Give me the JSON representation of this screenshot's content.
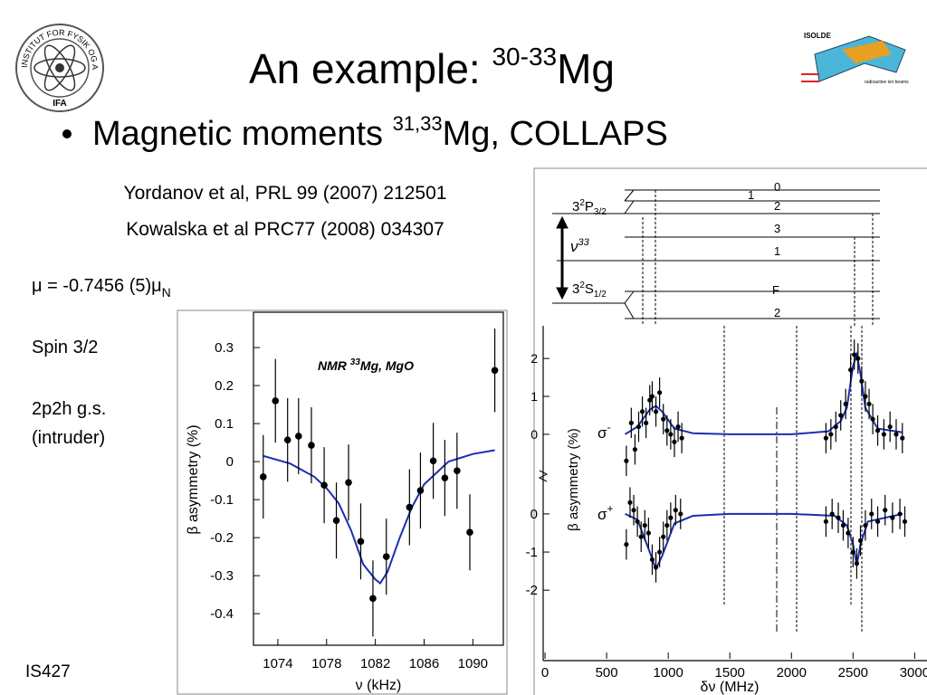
{
  "slide": {
    "title": "An example: ",
    "title_sup": "30-33",
    "title_tail": "Mg",
    "bullet": "Magnetic moments ",
    "bullet_sup": "31,33",
    "bullet_tail": "Mg, COLLAPS",
    "refs": [
      "Yordanov et al, PRL 99 (2007) 212501",
      "Kowalska et al PRC77 (2008) 034307"
    ],
    "mu_text": "μ  = -0.7456 (5)μ",
    "mu_sub": "N",
    "notes": [
      "Spin 3/2",
      "2p2h g.s.",
      "(intruder)"
    ],
    "footer": "IS427",
    "logo_ring": "INSTITUT FOR FYSIK OG ASTRONOMI",
    "logo_name": "IFA",
    "isolde": "ISOLDE",
    "isolde_beams": "radioactive ion beams",
    "levels": {
      "upper": "3",
      "upper_sup": "2",
      "upper_tail": "P",
      "upper_sub": "3/2",
      "lower": "3",
      "lower_sup": "2",
      "lower_tail": "S",
      "lower_sub": "1/2",
      "nu": "ν",
      "nu_sup": "33",
      "labels": [
        "0",
        "1",
        "2",
        "3",
        "1",
        "F",
        "2"
      ]
    }
  },
  "chart_data": [
    {
      "type": "scatter",
      "title": "NMR ",
      "title_sup": "33",
      "title_tail": "Mg, MgO",
      "xlabel": "ν (kHz)",
      "ylabel": "β asymmetry (%)",
      "xlim": [
        1072,
        1092.5
      ],
      "ylim": [
        -0.483,
        0.393
      ],
      "xticks": [
        1074,
        1078,
        1082,
        1086,
        1090
      ],
      "yticks": [
        0.3,
        0.2,
        0.1,
        0,
        -0.1,
        -0.2,
        -0.3,
        -0.4
      ],
      "color": "#000000",
      "x": [
        1072.8,
        1073.8,
        1074.8,
        1075.7,
        1076.75,
        1077.8,
        1078.8,
        1079.8,
        1080.8,
        1081.8,
        1082.9,
        1084.8,
        1085.7,
        1086.75,
        1087.7,
        1088.7,
        1089.75,
        1091.8
      ],
      "values": [
        -0.04,
        0.16,
        0.057,
        0.067,
        0.043,
        -0.062,
        -0.155,
        -0.055,
        -0.21,
        -0.36,
        -0.25,
        -0.12,
        -0.076,
        0.002,
        -0.043,
        -0.024,
        -0.186,
        0.24
      ],
      "errors": [
        0.11,
        0.11,
        0.11,
        0.1,
        0.1,
        0.1,
        0.1,
        0.1,
        0.1,
        0.1,
        0.1,
        0.1,
        0.1,
        0.1,
        0.1,
        0.1,
        0.1,
        0.11
      ],
      "fit": {
        "color": "#1a2fb0",
        "x": [
          1072.8,
          1075,
          1077,
          1078,
          1079,
          1080,
          1081,
          1082,
          1082.4,
          1083,
          1084,
          1085,
          1086,
          1088,
          1090,
          1091.8
        ],
        "values": [
          0.015,
          -0.005,
          -0.04,
          -0.07,
          -0.11,
          -0.18,
          -0.27,
          -0.31,
          -0.32,
          -0.29,
          -0.2,
          -0.12,
          -0.06,
          0.0,
          0.02,
          0.03
        ]
      }
    },
    {
      "type": "scatter",
      "panel_label": "σ",
      "panel_label_sup": "-",
      "ylabel": "β asymmetry (%)",
      "xlim": [
        -15,
        3100
      ],
      "ylim": [
        -1.1,
        2.6
      ],
      "yticks": [
        2,
        1,
        0
      ],
      "color": "#000000",
      "x": [
        660,
        700,
        730,
        760,
        790,
        820,
        850,
        870,
        900,
        930,
        960,
        990,
        1020,
        1050,
        1080,
        1110,
        2280,
        2320,
        2360,
        2400,
        2440,
        2480,
        2510,
        2540,
        2570,
        2600,
        2630,
        2660,
        2700,
        2750,
        2800,
        2850,
        2900
      ],
      "values": [
        -0.7,
        0.3,
        -0.4,
        0.2,
        0.6,
        0.3,
        0.9,
        1.0,
        0.6,
        1.1,
        0.4,
        0.1,
        0.0,
        -0.2,
        0.2,
        -0.1,
        -0.1,
        0.0,
        0.2,
        0.5,
        0.8,
        1.7,
        2.1,
        2.0,
        1.4,
        1.0,
        0.8,
        0.4,
        0.1,
        0.0,
        0.2,
        0.0,
        -0.1
      ],
      "errors": [
        0.4,
        0.4,
        0.4,
        0.4,
        0.4,
        0.4,
        0.4,
        0.4,
        0.4,
        0.4,
        0.4,
        0.4,
        0.4,
        0.4,
        0.4,
        0.4,
        0.4,
        0.4,
        0.4,
        0.4,
        0.4,
        0.4,
        0.4,
        0.4,
        0.4,
        0.4,
        0.4,
        0.4,
        0.4,
        0.4,
        0.4,
        0.4,
        0.4
      ],
      "fit": {
        "color": "#1a2fb0",
        "x": [
          650,
          750,
          850,
          900,
          950,
          1050,
          1200,
          1500,
          2000,
          2300,
          2400,
          2450,
          2500,
          2530,
          2560,
          2600,
          2700,
          2900
        ],
        "values": [
          0.0,
          0.2,
          0.65,
          0.75,
          0.6,
          0.15,
          0.03,
          0.0,
          0.0,
          0.08,
          0.35,
          0.7,
          1.8,
          2.1,
          1.6,
          0.7,
          0.15,
          0.05
        ]
      }
    },
    {
      "type": "scatter",
      "panel_label": "σ",
      "panel_label_sup": "+",
      "xlabel": "δν (MHz)",
      "xlim": [
        -15,
        3100
      ],
      "ylim": [
        -3.8,
        0.9
      ],
      "xticks": [
        0,
        500,
        1000,
        1500,
        2000,
        2500,
        3000
      ],
      "yticks": [
        0,
        -1,
        -2
      ],
      "color": "#000000",
      "x": [
        660,
        690,
        720,
        750,
        780,
        810,
        840,
        870,
        900,
        930,
        960,
        990,
        1020,
        1060,
        1100,
        2280,
        2330,
        2380,
        2420,
        2460,
        2500,
        2530,
        2560,
        2600,
        2650,
        2700,
        2760,
        2820,
        2880,
        2920
      ],
      "values": [
        -0.8,
        0.3,
        0.1,
        -0.2,
        -0.6,
        -0.3,
        -0.5,
        -1.2,
        -1.4,
        -1.0,
        -0.6,
        -0.3,
        -0.1,
        0.1,
        0.0,
        -0.2,
        0.0,
        -0.1,
        -0.3,
        -0.5,
        -1.0,
        -1.3,
        -0.7,
        -0.3,
        0.0,
        -0.2,
        0.1,
        -0.1,
        0.0,
        -0.2
      ],
      "errors": [
        0.4,
        0.4,
        0.4,
        0.4,
        0.4,
        0.4,
        0.4,
        0.4,
        0.4,
        0.4,
        0.4,
        0.4,
        0.4,
        0.4,
        0.4,
        0.4,
        0.4,
        0.4,
        0.4,
        0.4,
        0.4,
        0.4,
        0.4,
        0.4,
        0.4,
        0.4,
        0.4,
        0.4,
        0.4,
        0.4
      ],
      "fit": {
        "color": "#1a2fb0",
        "x": [
          650,
          750,
          850,
          900,
          950,
          1050,
          1200,
          1500,
          2000,
          2350,
          2450,
          2500,
          2530,
          2560,
          2620,
          2900
        ],
        "values": [
          0.0,
          -0.15,
          -1.0,
          -1.45,
          -1.1,
          -0.25,
          -0.05,
          0.0,
          0.0,
          -0.05,
          -0.3,
          -0.8,
          -1.35,
          -0.8,
          -0.2,
          0.0
        ]
      }
    }
  ]
}
